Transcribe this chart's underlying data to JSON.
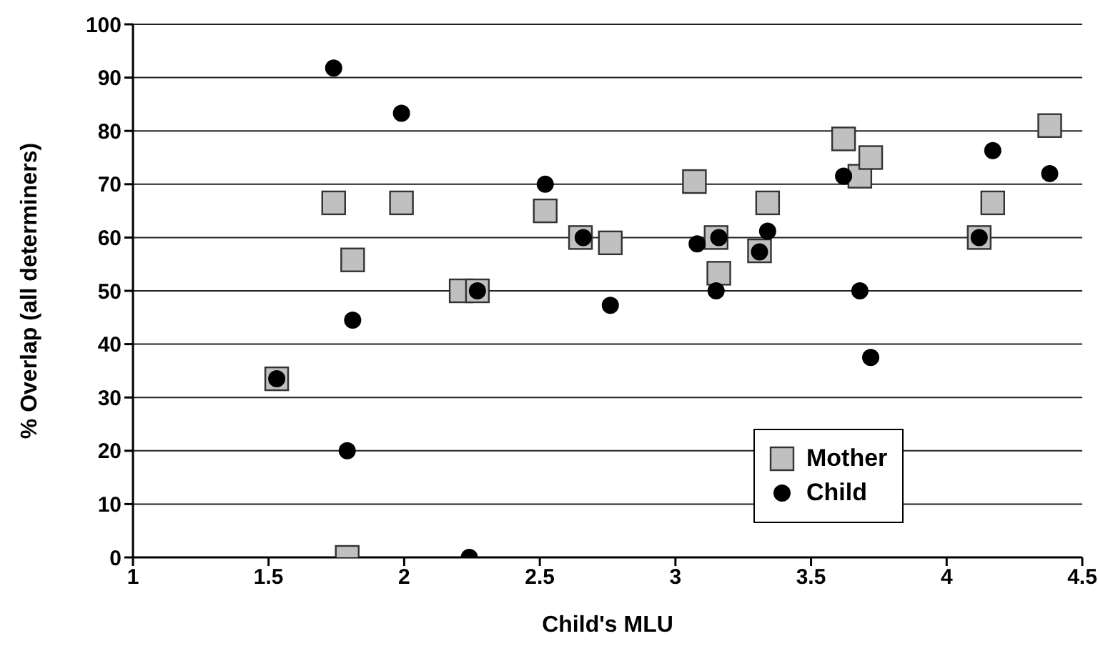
{
  "chart_data": {
    "type": "scatter",
    "xlabel": "Child's MLU",
    "ylabel": "% Overlap (all determiners)",
    "xlim": [
      1,
      4.5
    ],
    "xticks": [
      1,
      1.5,
      2,
      2.5,
      3,
      3.5,
      4,
      4.5
    ],
    "ylim": [
      0,
      100
    ],
    "yticks": [
      0,
      10,
      20,
      30,
      40,
      50,
      60,
      70,
      80,
      90,
      100
    ],
    "grid": "y",
    "legend": "bottom right",
    "series": [
      {
        "name": "Mother",
        "color": "#c0c0c0",
        "marker": "square",
        "x": [
          1.53,
          1.74,
          1.81,
          1.79,
          1.99,
          2.21,
          2.27,
          2.52,
          2.65,
          2.76,
          3.07,
          3.15,
          3.16,
          3.31,
          3.34,
          3.62,
          3.68,
          3.72,
          4.12,
          4.17,
          4.38
        ],
        "values": [
          33.5,
          66.5,
          55.8,
          0,
          66.5,
          50,
          50,
          65,
          60,
          59,
          70.5,
          60,
          53.3,
          57.5,
          66.5,
          78.5,
          71.5,
          75,
          60,
          66.5,
          81
        ]
      },
      {
        "name": "Child",
        "color": "#000000",
        "marker": "circle",
        "x": [
          1.53,
          1.74,
          1.81,
          1.79,
          1.99,
          2.24,
          2.27,
          2.52,
          2.66,
          2.76,
          3.08,
          3.16,
          3.15,
          3.31,
          3.34,
          3.62,
          3.68,
          3.72,
          4.12,
          4.17,
          4.38
        ],
        "values": [
          33.5,
          91.8,
          44.5,
          20,
          83.3,
          0,
          50,
          70,
          60,
          47.3,
          58.8,
          60,
          50,
          57.3,
          61.2,
          71.5,
          50,
          37.5,
          60,
          76.3,
          72
        ]
      }
    ]
  }
}
